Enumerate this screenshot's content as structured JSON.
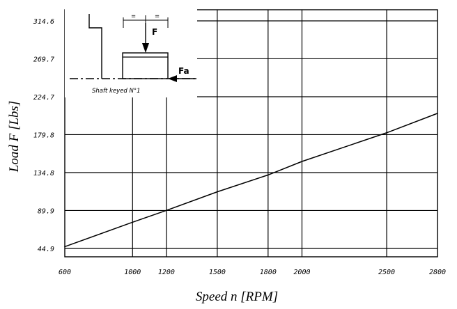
{
  "chart_data": {
    "type": "line",
    "xlabel": "Speed n [RPM]",
    "ylabel": "Load F [Lbs]",
    "xlim": [
      600,
      2800
    ],
    "ylim": [
      44.9,
      314.6
    ],
    "x_ticks": [
      600,
      1000,
      1200,
      1500,
      1800,
      2000,
      2500,
      2800
    ],
    "x_tick_labels": [
      "600",
      "1000",
      "1200",
      "1500",
      "1800",
      "2000",
      "2500",
      "2800"
    ],
    "y_ticks": [
      44.9,
      89.9,
      134.8,
      179.8,
      224.7,
      269.7,
      314.6
    ],
    "y_tick_labels": [
      "44.9",
      "89.9",
      "134.8",
      "179.8",
      "224.7",
      "269.7",
      "314.6"
    ],
    "grid": true,
    "series": [
      {
        "x": [
          600,
          1000,
          1200,
          1500,
          1800,
          2000,
          2500,
          2800
        ],
        "y": [
          47,
          76,
          90,
          112,
          132,
          148,
          182,
          205
        ]
      }
    ],
    "inset": {
      "caption": "Shaft keyed N°1",
      "force_label": "F",
      "axial_label": "Fa",
      "equal_marks": [
        "=",
        "="
      ]
    }
  }
}
